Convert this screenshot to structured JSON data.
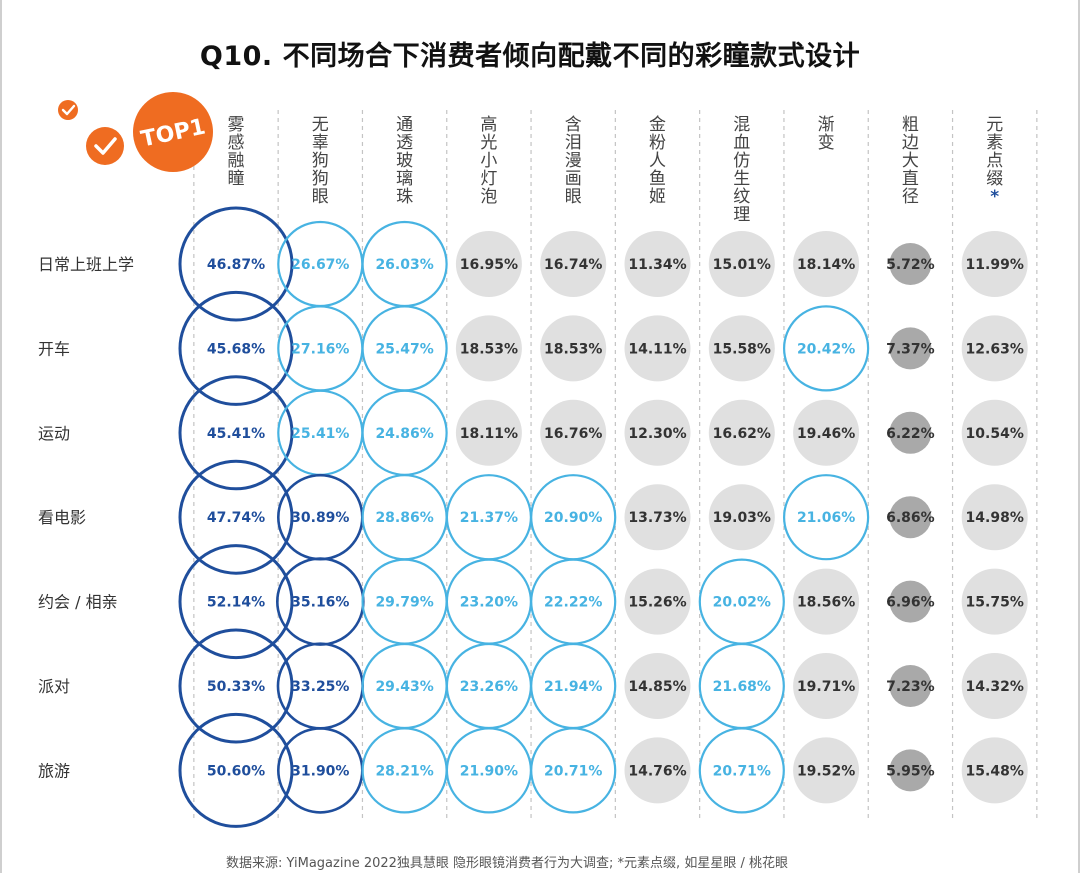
{
  "title": "Q10. 不同场合下消费者倾向配戴不同的彩瞳款式设计",
  "badge": "TOP1",
  "source": "数据来源: YiMagazine 2022独具慧眼 隐形眼镜消费者行为大调查; *元素点缀, 如星星眼 / 桃花眼",
  "colors": {
    "top1": "#1f4e9c",
    "top2": "#1f4e9c",
    "top3": "#47b3e2",
    "gray": "#e0e0e0",
    "darkgray": "#a9a9a9",
    "badge": "#ef6c21",
    "text": "#333333"
  },
  "chart_data": {
    "type": "table",
    "title": "Q10. 不同场合下消费者倾向配戴不同的彩瞳款式设计",
    "columns": [
      "雾感融瞳",
      "无辜狗狗眼",
      "通透玻璃珠",
      "高光小灯泡",
      "含泪漫画眼",
      "金粉人鱼姬",
      "混血仿生纹理",
      "渐变",
      "粗边大直径",
      "元素点缀"
    ],
    "column_note_marker": "*",
    "rows": [
      {
        "label": "日常上班上学",
        "values": [
          46.87,
          26.67,
          26.03,
          16.95,
          16.74,
          11.34,
          15.01,
          18.14,
          5.72,
          11.99
        ],
        "styles": [
          "top1",
          "top3",
          "top3",
          "gray",
          "gray",
          "gray",
          "gray",
          "gray",
          "darkgray",
          "gray"
        ]
      },
      {
        "label": "开车",
        "values": [
          45.68,
          27.16,
          25.47,
          18.53,
          18.53,
          14.11,
          15.58,
          20.42,
          7.37,
          12.63
        ],
        "styles": [
          "top1",
          "top3",
          "top3",
          "gray",
          "gray",
          "gray",
          "gray",
          "top3",
          "darkgray",
          "gray"
        ]
      },
      {
        "label": "运动",
        "values": [
          45.41,
          25.41,
          24.86,
          18.11,
          16.76,
          12.3,
          16.62,
          19.46,
          6.22,
          10.54
        ],
        "styles": [
          "top1",
          "top3",
          "top3",
          "gray",
          "gray",
          "gray",
          "gray",
          "gray",
          "darkgray",
          "gray"
        ]
      },
      {
        "label": "看电影",
        "values": [
          47.74,
          30.89,
          28.86,
          21.37,
          20.9,
          13.73,
          19.03,
          21.06,
          6.86,
          14.98
        ],
        "styles": [
          "top1",
          "top2",
          "top3",
          "top3",
          "top3",
          "gray",
          "gray",
          "top3",
          "darkgray",
          "gray"
        ]
      },
      {
        "label": "约会 / 相亲",
        "values": [
          52.14,
          35.16,
          29.79,
          23.2,
          22.22,
          15.26,
          20.02,
          18.56,
          6.96,
          15.75
        ],
        "styles": [
          "top1",
          "top2",
          "top3",
          "top3",
          "top3",
          "gray",
          "top3",
          "gray",
          "darkgray",
          "gray"
        ]
      },
      {
        "label": "派对",
        "values": [
          50.33,
          33.25,
          29.43,
          23.26,
          21.94,
          14.85,
          21.68,
          19.71,
          7.23,
          14.32
        ],
        "styles": [
          "top1",
          "top2",
          "top3",
          "top3",
          "top3",
          "gray",
          "top3",
          "gray",
          "darkgray",
          "gray"
        ]
      },
      {
        "label": "旅游",
        "values": [
          50.6,
          31.9,
          28.21,
          21.9,
          20.71,
          14.76,
          20.71,
          19.52,
          5.95,
          15.48
        ],
        "styles": [
          "top1",
          "top2",
          "top3",
          "top3",
          "top3",
          "gray",
          "top3",
          "gray",
          "darkgray",
          "gray"
        ]
      }
    ],
    "unit": "%"
  }
}
